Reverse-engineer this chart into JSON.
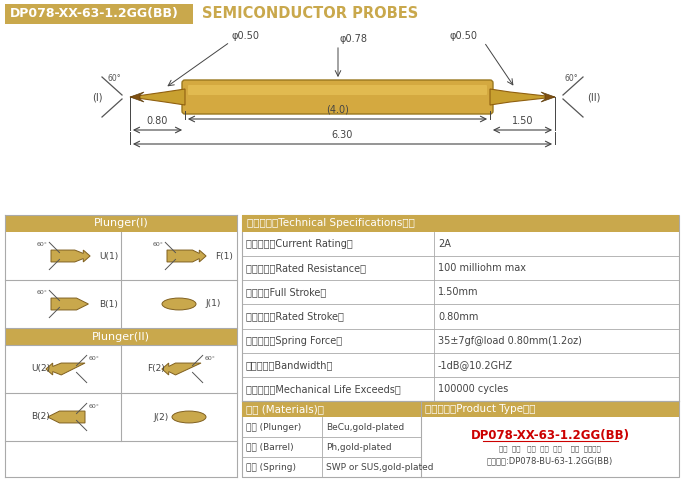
{
  "title_box_text": "DP078-XX-63-1.2GG(BB)",
  "title_box_color": "#C9A84C",
  "title_right_text": "SEMICONDUCTOR PROBES",
  "title_right_color": "#C9A84C",
  "bg_color": "#FFFFFF",
  "dim_color": "#444444",
  "gold_color": "#C9A84C",
  "specs": [
    [
      "额定电流（Current Rating）",
      "2A"
    ],
    [
      "额定电阻（Rated Resistance）",
      "100 milliohm max"
    ],
    [
      "满行程（Full Stroke）",
      "1.50mm"
    ],
    [
      "额定行程（Rated Stroke）",
      "0.80mm"
    ],
    [
      "额定弹力（Spring Force）",
      "35±7gf@load 0.80mm(1.2oz)"
    ],
    [
      "频率带宽（Bandwidth）",
      "-1dB@10.2GHZ"
    ],
    [
      "测试寿命（Mechanical Life Exceeds）",
      "100000 cycles"
    ]
  ],
  "materials": [
    [
      "针头 (Plunger)",
      "BeCu,gold-plated"
    ],
    [
      "针管 (Barrel)",
      "Ph,gold-plated"
    ],
    [
      "弹簧 (Spring)",
      "SWP or SUS,gold-plated"
    ]
  ],
  "tech_header": "技术要求（Technical Specifications）：",
  "materials_header": "材质 (Materials)：",
  "product_type_header": "成品型号（Product Type）：",
  "product_type_model": "DP078-XX-63-1.2GG(BB)",
  "product_labels": "系列  规格   头型  总长  弹力    镜金  针头材质",
  "order_example": "订购单例:DP078-BU-63-1.2GG(BB)"
}
